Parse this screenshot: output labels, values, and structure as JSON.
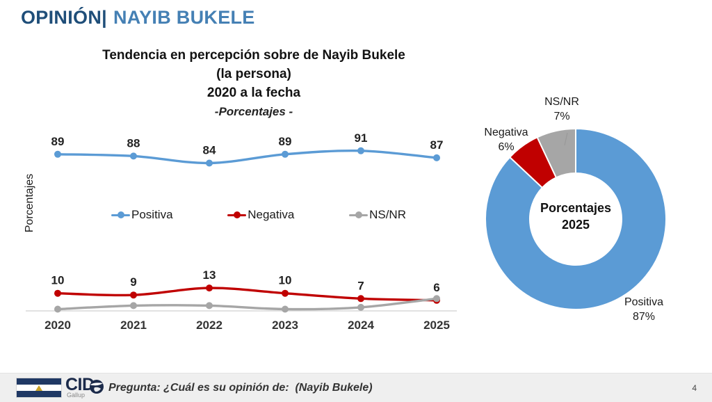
{
  "colors": {
    "header_dark_blue": "#1F4E79",
    "header_light_blue": "#4580B4",
    "positiva_blue": "#5B9BD5",
    "negativa_red": "#C00000",
    "nsnr_gray": "#A6A6A6",
    "axis_gray": "#D9D9D9",
    "footer_bg": "#EFEFEF",
    "logo_navy": "#1B2A4A"
  },
  "header": {
    "section_label": "OPINIÓN|",
    "subject_label": "NAYIB BUKELE"
  },
  "chart_data": [
    {
      "type": "line",
      "title_lines": [
        "Tendencia en percepción sobre de Nayib Bukele",
        "(la persona)",
        "2020 a la fecha"
      ],
      "subtitle": "-Porcentajes -",
      "ylabel": "Porcentajes",
      "xlabel": "",
      "categories": [
        "2020",
        "2021",
        "2022",
        "2023",
        "2024",
        "2025"
      ],
      "series": [
        {
          "name": "Positiva",
          "color": "#5B9BD5",
          "values": [
            89,
            88,
            84,
            89,
            91,
            87
          ],
          "show_labels": true
        },
        {
          "name": "Negativa",
          "color": "#C00000",
          "values": [
            10,
            9,
            13,
            10,
            7,
            6
          ],
          "show_labels": true
        },
        {
          "name": "NS/NR",
          "color": "#A6A6A6",
          "values": [
            1,
            3,
            3,
            1,
            2,
            7
          ],
          "show_labels": false
        }
      ],
      "ylim": [
        0,
        100
      ],
      "grid": false,
      "legend_position": "center-middle"
    },
    {
      "type": "donut",
      "center_label_lines": [
        "Porcentajes",
        "2025"
      ],
      "slices": [
        {
          "name": "Positiva",
          "value": 87,
          "pct_label": "87%",
          "color": "#5B9BD5"
        },
        {
          "name": "Negativa",
          "value": 6,
          "pct_label": "6%",
          "color": "#C00000"
        },
        {
          "name": "NS/NR",
          "value": 7,
          "pct_label": "7%",
          "color": "#A6A6A6"
        }
      ]
    }
  ],
  "footer": {
    "flag_icon": "el-salvador-flag-icon",
    "globe_icon": "globe-icon",
    "brand_name": "CID",
    "brand_sub": "Gallup",
    "question": "Pregunta: ¿Cuál es su opinión de:  (Nayib Bukele)",
    "page_number": "4"
  }
}
